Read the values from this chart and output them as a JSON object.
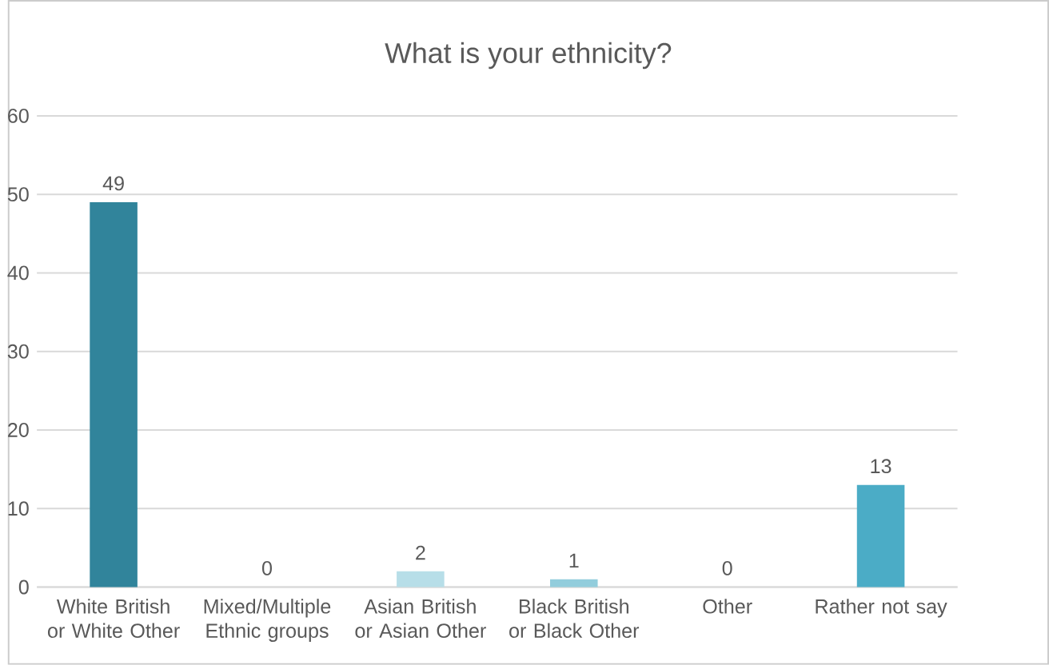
{
  "chart_data": {
    "type": "bar",
    "title": "What is your ethnicity?",
    "categories": [
      "White British or White Other",
      "Mixed/Multiple Ethnic groups",
      "Asian British or Asian Other",
      "Black British or Black Other",
      "Other",
      "Rather not say"
    ],
    "values": [
      49,
      0,
      2,
      1,
      0,
      13
    ],
    "colors": [
      "#31849b",
      "#4bacc6",
      "#b7dee8",
      "#92cddc",
      "#4bacc6",
      "#4bacc6"
    ],
    "ylim": [
      0,
      60
    ],
    "yticks": [
      0,
      10,
      20,
      30,
      40,
      50,
      60
    ],
    "grid": "y",
    "data_labels": true
  }
}
